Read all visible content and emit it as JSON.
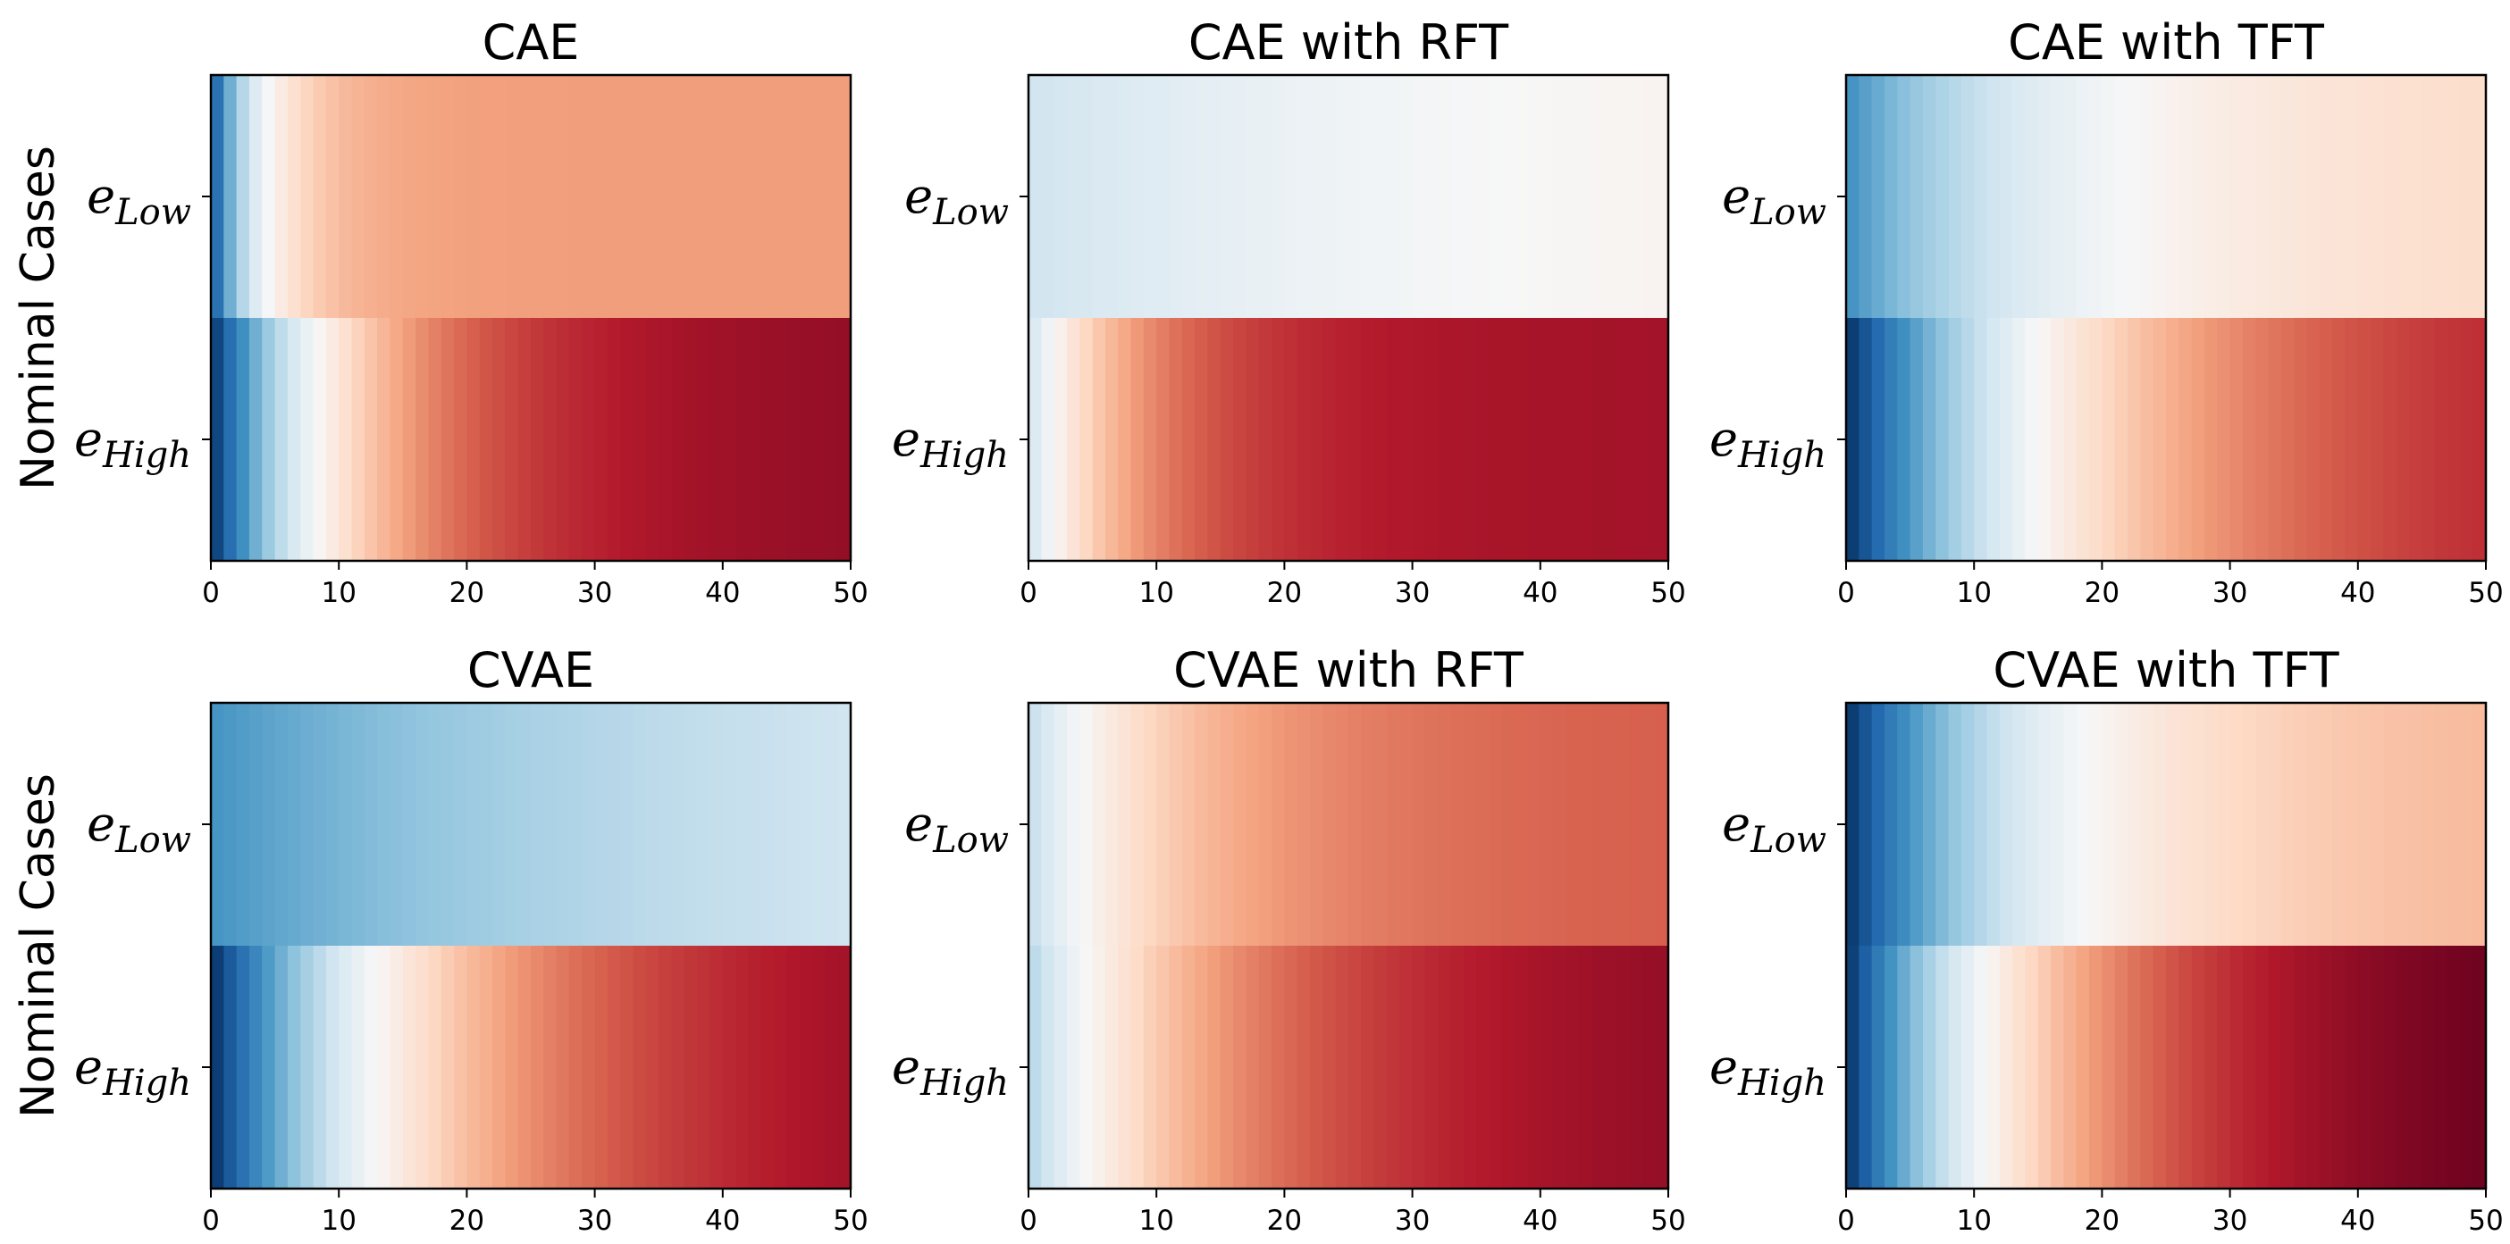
{
  "figure": {
    "row_ylabels": [
      "Nominal Cases",
      "Nominal Cases"
    ],
    "colormap": "RdBu_r",
    "color_range": [
      -1,
      1
    ],
    "colormap_stops": [
      "#053061",
      "#2166ac",
      "#4393c3",
      "#92c5de",
      "#d1e5f0",
      "#f7f7f7",
      "#fddbc7",
      "#f4a582",
      "#d6604d",
      "#b2182b",
      "#67001f"
    ]
  },
  "chart_data": [
    {
      "type": "heatmap",
      "title": "CAE",
      "xlim": [
        0,
        50
      ],
      "xticks": [
        0,
        10,
        20,
        30,
        40,
        50
      ],
      "rows": [
        {
          "base": "e",
          "sub": "Low",
          "k": 0.25,
          "min": -0.9,
          "max": 0.42
        },
        {
          "base": "e",
          "sub": "High",
          "k": 0.09,
          "min": -1.0,
          "max": 0.88
        }
      ]
    },
    {
      "type": "heatmap",
      "title": "CAE with RFT",
      "xlim": [
        0,
        50
      ],
      "xticks": [
        0,
        10,
        20,
        30,
        40,
        50
      ],
      "rows": [
        {
          "base": "e",
          "sub": "Low",
          "k": 0.03,
          "min": -0.2,
          "max": 0.03
        },
        {
          "base": "e",
          "sub": "High",
          "k": 0.11,
          "min": -0.2,
          "max": 0.84
        }
      ]
    },
    {
      "type": "heatmap",
      "title": "CAE with TFT",
      "xlim": [
        0,
        50
      ],
      "xticks": [
        0,
        10,
        20,
        30,
        40,
        50
      ],
      "rows": [
        {
          "base": "e",
          "sub": "Low",
          "k": 0.06,
          "min": -0.62,
          "max": 0.18
        },
        {
          "base": "e",
          "sub": "High",
          "k": 0.05,
          "min": -1.0,
          "max": 0.74
        }
      ]
    },
    {
      "type": "heatmap",
      "title": "CVAE",
      "xlim": [
        0,
        50
      ],
      "xticks": [
        0,
        10,
        20,
        30,
        40,
        50
      ],
      "rows": [
        {
          "base": "e",
          "sub": "Low",
          "k": 0.03,
          "min": -0.6,
          "max": -0.2
        },
        {
          "base": "e",
          "sub": "High",
          "k": 0.055,
          "min": -1.0,
          "max": 0.84
        }
      ]
    },
    {
      "type": "heatmap",
      "title": "CVAE with RFT",
      "xlim": [
        0,
        50
      ],
      "xticks": [
        0,
        10,
        20,
        30,
        40,
        50
      ],
      "rows": [
        {
          "base": "e",
          "sub": "Low",
          "k": 0.08,
          "min": -0.25,
          "max": 0.6
        },
        {
          "base": "e",
          "sub": "High",
          "k": 0.06,
          "min": -0.3,
          "max": 0.88
        }
      ]
    },
    {
      "type": "heatmap",
      "title": "CVAE with TFT",
      "xlim": [
        0,
        50
      ],
      "xticks": [
        0,
        10,
        20,
        30,
        40,
        50
      ],
      "rows": [
        {
          "base": "e",
          "sub": "Low",
          "k": 0.07,
          "min": -1.0,
          "max": 0.32
        },
        {
          "base": "e",
          "sub": "High",
          "k": 0.06,
          "min": -1.0,
          "max": 0.98
        }
      ]
    }
  ]
}
